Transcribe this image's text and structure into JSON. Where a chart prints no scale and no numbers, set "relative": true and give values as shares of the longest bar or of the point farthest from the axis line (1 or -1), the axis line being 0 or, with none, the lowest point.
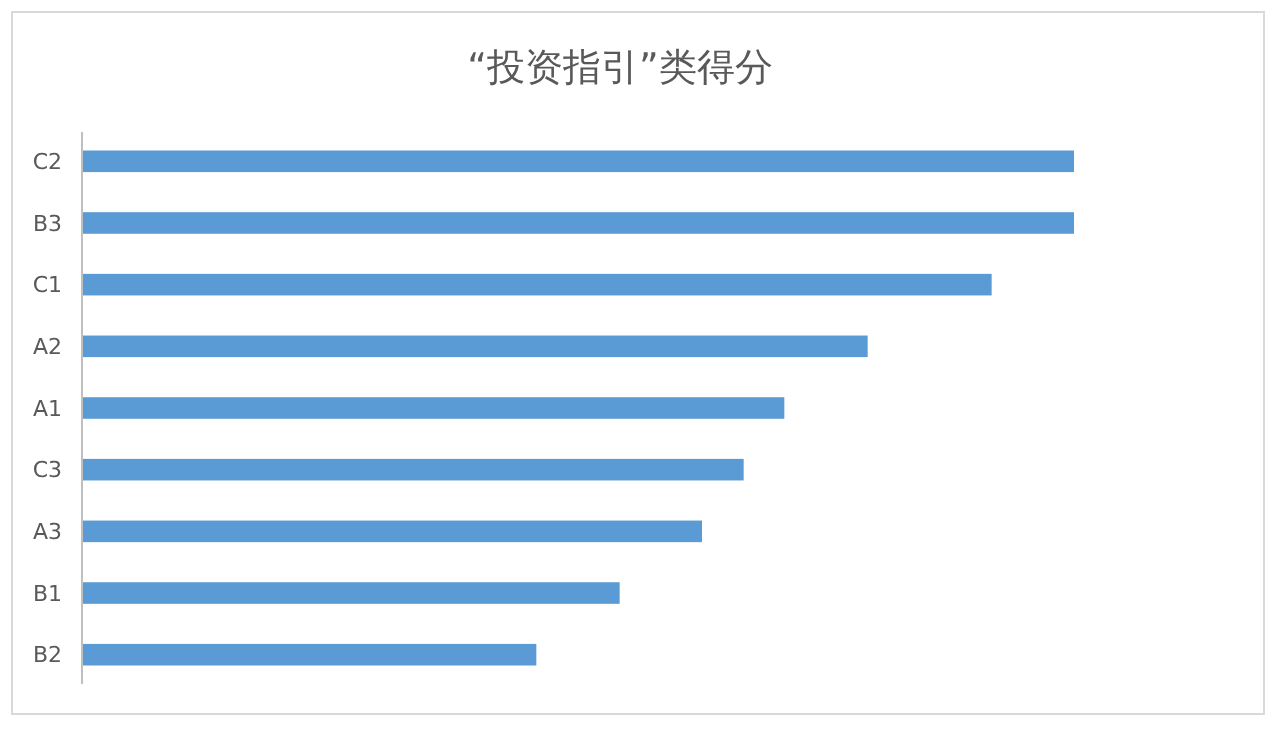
{
  "chart_data": {
    "type": "bar",
    "orientation": "horizontal",
    "relative": true,
    "title": "“投资指引”类得分",
    "categories": [
      "C2",
      "B3",
      "C1",
      "A2",
      "A1",
      "C3",
      "A3",
      "B1",
      "B2"
    ],
    "values": [
      1,
      1,
      0.917,
      0.792,
      0.708,
      0.667,
      0.625,
      0.542,
      0.458
    ],
    "color": "#5b9bd5"
  }
}
